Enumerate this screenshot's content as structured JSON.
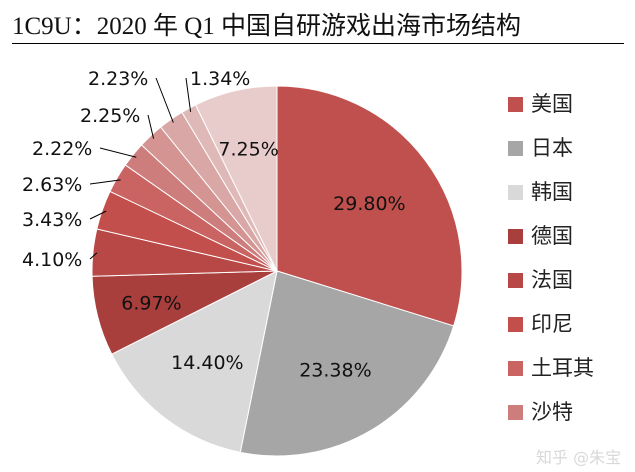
{
  "chart_data": {
    "type": "pie",
    "title": "1C9U：2020 年 Q1 中国自研游戏出海市场结构",
    "start": "12 o'clock, clockwise",
    "legend_position": "right",
    "slices": [
      {
        "name": "美国",
        "value": 29.8,
        "label": "29.80%",
        "color": "#c0504d"
      },
      {
        "name": "日本",
        "value": 23.38,
        "label": "23.38%",
        "color": "#a6a6a6"
      },
      {
        "name": "韩国",
        "value": 14.4,
        "label": "14.40%",
        "color": "#d9d9d9"
      },
      {
        "name": "德国",
        "value": 6.97,
        "label": "6.97%",
        "color": "#a93f3d"
      },
      {
        "name": "法国",
        "value": 4.1,
        "label": "4.10%",
        "color": "#b84845"
      },
      {
        "name": "印尼",
        "value": 3.43,
        "label": "3.43%",
        "color": "#c24f4c"
      },
      {
        "name": "土耳其",
        "value": 2.63,
        "label": "2.63%",
        "color": "#c96462"
      },
      {
        "name": "沙特",
        "value": 2.22,
        "label": "2.22%",
        "color": "#cd7d7b"
      },
      {
        "name": "",
        "value": 2.25,
        "label": "2.25%",
        "color": "#d39492"
      },
      {
        "name": "",
        "value": 2.23,
        "label": "2.23%",
        "color": "#d9a8a6"
      },
      {
        "name": "",
        "value": 1.34,
        "label": "1.34%",
        "color": "#dfb9b8"
      },
      {
        "name": "",
        "value": 7.25,
        "label": "7.25%",
        "color": "#e8cccb"
      }
    ]
  },
  "watermark": "知乎 @朱宝"
}
